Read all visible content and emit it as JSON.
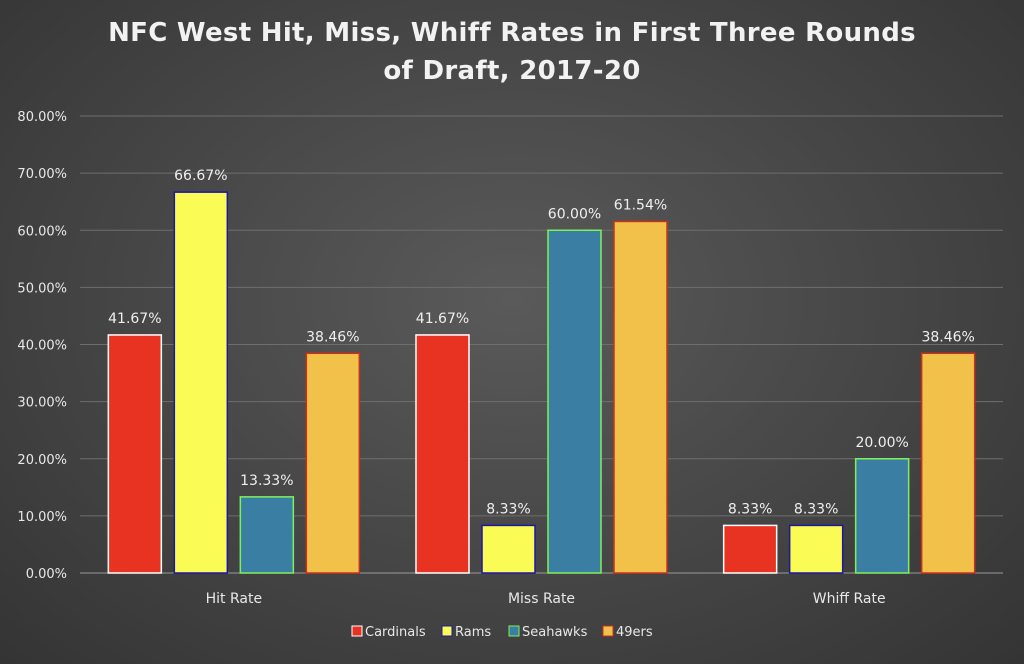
{
  "chart_data": {
    "type": "bar",
    "title_lines": [
      "NFC West Hit, Miss, Whiff Rates in First Three Rounds",
      "of Draft, 2017-20"
    ],
    "categories": [
      "Hit Rate",
      "Miss Rate",
      "Whiff Rate"
    ],
    "series": [
      {
        "name": "Cardinals",
        "values": [
          41.67,
          41.67,
          8.33
        ],
        "labels": [
          "41.67%",
          "41.67%",
          "8.33%"
        ],
        "fill": "#e83323",
        "stroke": "#ffffff"
      },
      {
        "name": "Rams",
        "values": [
          66.67,
          8.33,
          8.33
        ],
        "labels": [
          "66.67%",
          "8.33%",
          "8.33%"
        ],
        "fill": "#fbfb56",
        "stroke": "#1d17a5"
      },
      {
        "name": "Seahawks",
        "values": [
          13.33,
          60.0,
          20.0
        ],
        "labels": [
          "13.33%",
          "60.00%",
          "20.00%"
        ],
        "fill": "#3a7fa3",
        "stroke": "#7ff05a"
      },
      {
        "name": "49ers",
        "values": [
          38.46,
          61.54,
          38.46
        ],
        "labels": [
          "38.46%",
          "61.54%",
          "38.46%"
        ],
        "fill": "#f2c14a",
        "stroke": "#c8321c"
      }
    ],
    "y_ticks": [
      "0.00%",
      "10.00%",
      "20.00%",
      "30.00%",
      "40.00%",
      "50.00%",
      "60.00%",
      "70.00%",
      "80.00%"
    ],
    "ylim": [
      0,
      80
    ],
    "grid": true,
    "legend_position": "bottom"
  },
  "colors": {
    "gridline": "#6e6e6e",
    "axis_text": "#e8e8e8",
    "label_text": "#efefef"
  }
}
